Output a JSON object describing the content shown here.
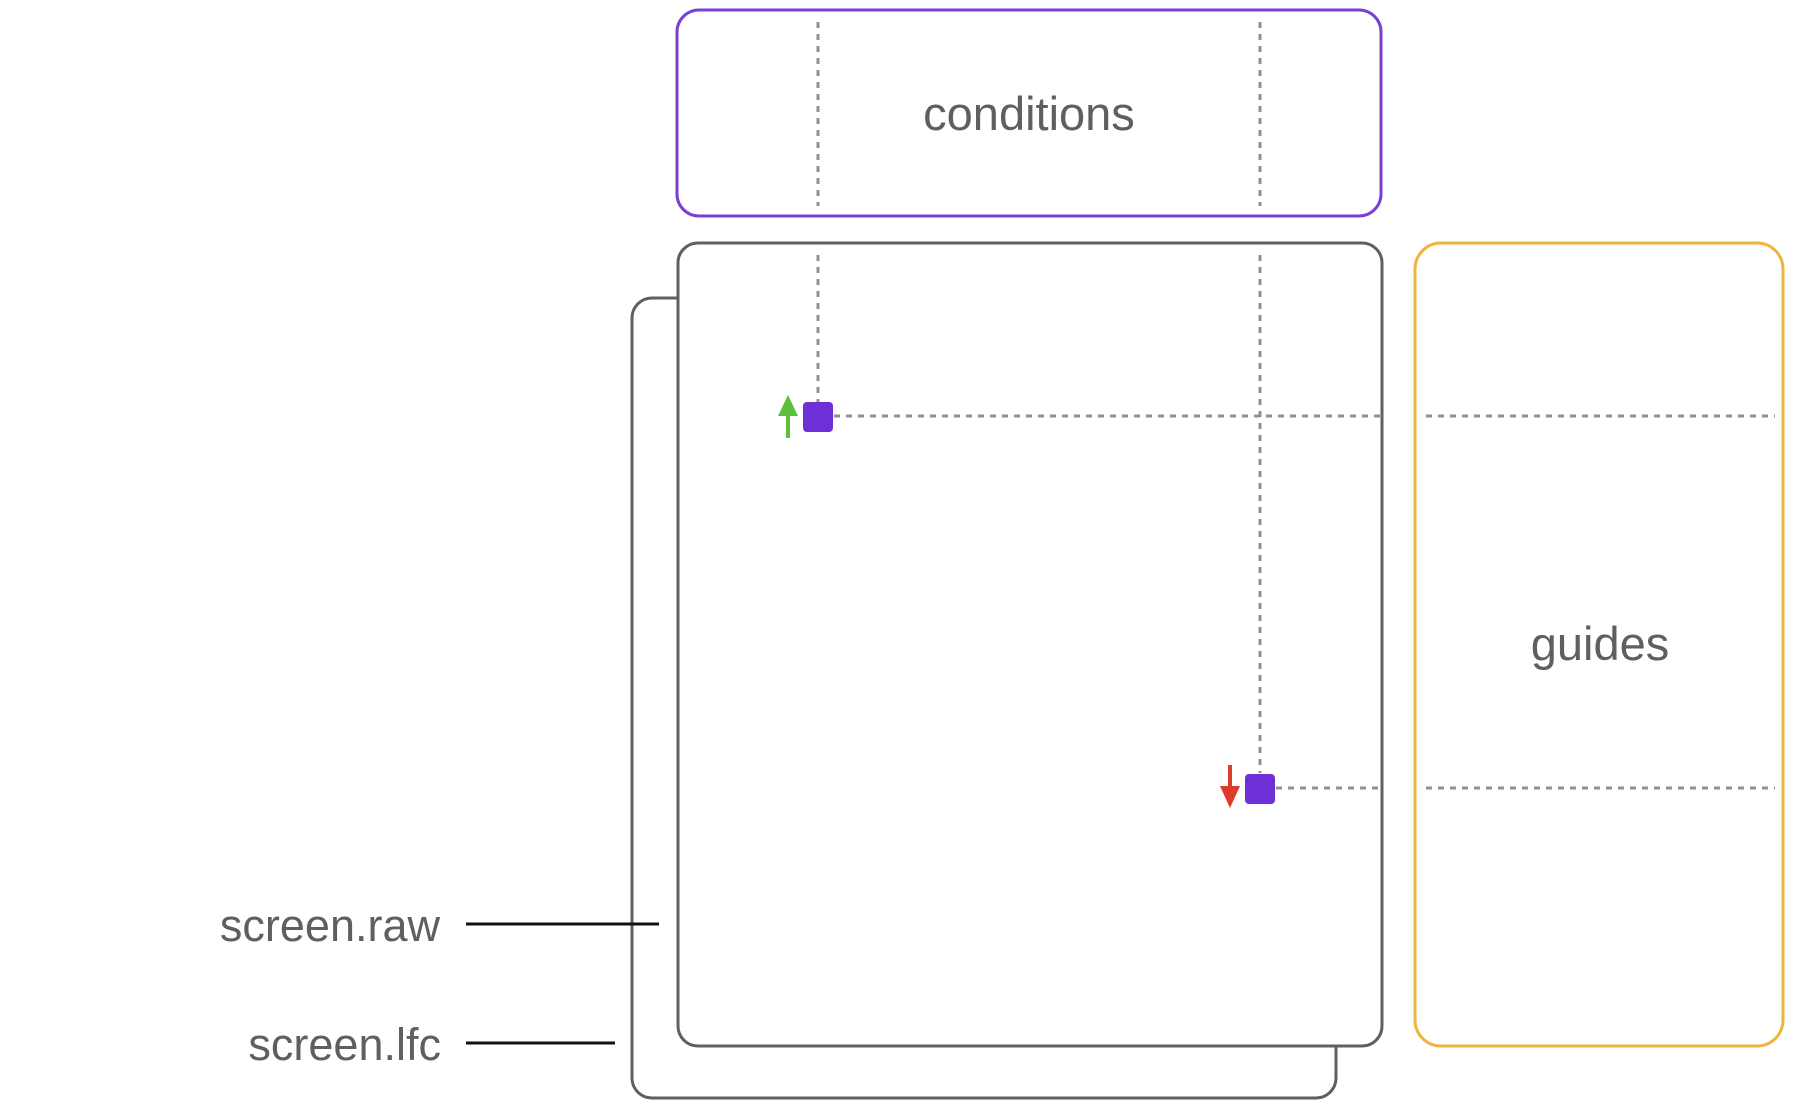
{
  "diagram": {
    "conditions_label": "conditions",
    "guides_label": "guides",
    "screen_raw_label": "screen.raw",
    "screen_lfc_label": "screen.lfc"
  },
  "colors": {
    "conditions_border": "#7a3fd6",
    "guides_border": "#f0b43c",
    "screen_border": "#5f5f5f",
    "guide_dash": "#909090",
    "marker_fill": "#6f2fd6",
    "arrow_up": "#5cc03a",
    "arrow_down": "#e03a2c",
    "leader_line": "#111111"
  },
  "markers": [
    {
      "name": "top-left-marker",
      "arrow": "up"
    },
    {
      "name": "bottom-right-marker",
      "arrow": "down"
    }
  ]
}
